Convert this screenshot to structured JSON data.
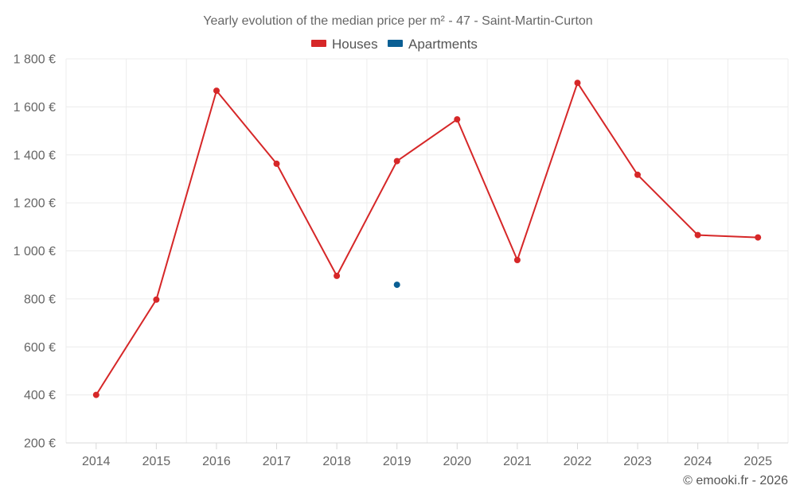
{
  "chart_data": {
    "type": "line",
    "title": "Yearly evolution of the median price per m² - 47 - Saint-Martin-Curton",
    "categories": [
      "2014",
      "2015",
      "2016",
      "2017",
      "2018",
      "2019",
      "2020",
      "2021",
      "2022",
      "2023",
      "2024",
      "2025"
    ],
    "series": [
      {
        "name": "Houses",
        "color": "#d62728",
        "values": [
          400,
          797,
          1667,
          1363,
          896,
          1374,
          1548,
          962,
          1700,
          1317,
          1066,
          1056
        ]
      },
      {
        "name": "Apartments",
        "color": "#0a5f94",
        "values": [
          null,
          null,
          null,
          null,
          null,
          859,
          null,
          null,
          null,
          null,
          null,
          null
        ]
      }
    ],
    "ylim": [
      200,
      1800
    ],
    "yticks": [
      200,
      400,
      600,
      800,
      1000,
      1200,
      1400,
      1600,
      1800
    ],
    "ytick_labels": [
      "200 €",
      "400 €",
      "600 €",
      "800 €",
      "1 000 €",
      "1 200 €",
      "1 400 €",
      "1 600 €",
      "1 800 €"
    ],
    "grid": true,
    "legend_position": "top-center",
    "credit": "© emooki.fr - 2026"
  }
}
